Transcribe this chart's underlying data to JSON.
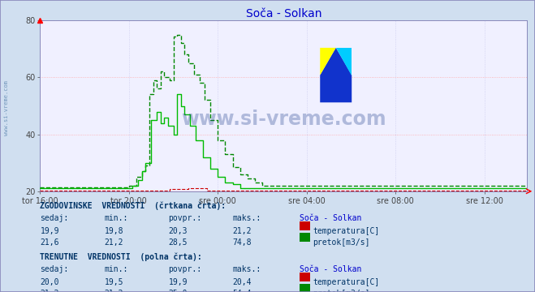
{
  "title": "Soča - Solkan",
  "bg_color": "#d0dff0",
  "plot_bg_color": "#f0f0ff",
  "grid_color": "#ffaaaa",
  "grid_color_v": "#ccccee",
  "ylim": [
    20,
    80
  ],
  "yticks": [
    20,
    40,
    60,
    80
  ],
  "xlabel_ticks": [
    "tor 16:00",
    "tor 20:00",
    "sre 00:00",
    "sre 04:00",
    "sre 08:00",
    "sre 12:00"
  ],
  "n_points": 264,
  "temp_hist_color": "#cc0000",
  "temp_curr_color": "#ff2222",
  "flow_hist_color": "#008800",
  "flow_curr_color": "#00bb00",
  "watermark": "www.si-vreme.com",
  "watermark_color": "#1a3a8a",
  "watermark_alpha": 0.3,
  "sidebar_text": "www.si-vreme.com",
  "sidebar_color": "#336699",
  "bottom_text_color": "#003366",
  "icon_red": "#cc0000",
  "icon_green": "#008800",
  "border_color": "#8888bb"
}
